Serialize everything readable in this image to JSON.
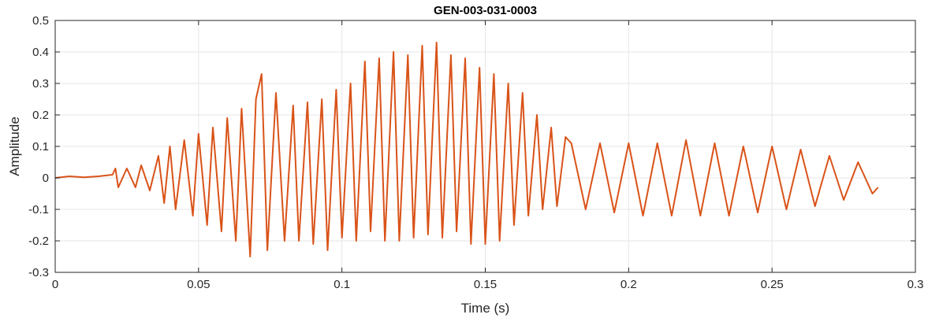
{
  "chart_data": {
    "type": "line",
    "title": "GEN-003-031-0003",
    "xlabel": "Time (s)",
    "ylabel": "Amplitude",
    "xlim": [
      0,
      0.3
    ],
    "ylim": [
      -0.3,
      0.5
    ],
    "xticks": [
      0,
      0.05,
      0.1,
      0.15,
      0.2,
      0.25,
      0.3
    ],
    "xtick_labels": [
      "0",
      "0.05",
      "0.1",
      "0.15",
      "0.2",
      "0.25",
      "0.3"
    ],
    "yticks": [
      -0.3,
      -0.2,
      -0.1,
      0,
      0.1,
      0.2,
      0.3,
      0.4,
      0.5
    ],
    "ytick_labels": [
      "-0.3",
      "-0.2",
      "-0.1",
      "0",
      "0.1",
      "0.2",
      "0.3",
      "0.4",
      "0.5"
    ],
    "grid": true,
    "line_color": "#D95319",
    "series": [
      {
        "x": [
          0,
          0.005,
          0.01,
          0.015,
          0.02,
          0.021,
          0.022,
          0.025,
          0.028,
          0.03,
          0.033,
          0.036,
          0.038,
          0.04,
          0.042,
          0.045,
          0.048,
          0.05,
          0.053,
          0.055,
          0.058,
          0.06,
          0.063,
          0.065,
          0.068,
          0.07,
          0.072,
          0.074,
          0.077,
          0.08,
          0.083,
          0.085,
          0.088,
          0.09,
          0.093,
          0.095,
          0.098,
          0.1,
          0.103,
          0.105,
          0.108,
          0.11,
          0.113,
          0.115,
          0.118,
          0.12,
          0.123,
          0.125,
          0.128,
          0.13,
          0.133,
          0.135,
          0.138,
          0.14,
          0.143,
          0.145,
          0.148,
          0.15,
          0.153,
          0.155,
          0.158,
          0.16,
          0.163,
          0.165,
          0.168,
          0.17,
          0.173,
          0.175,
          0.178,
          0.18,
          0.185,
          0.19,
          0.195,
          0.2,
          0.205,
          0.21,
          0.215,
          0.22,
          0.225,
          0.23,
          0.235,
          0.24,
          0.245,
          0.25,
          0.255,
          0.26,
          0.265,
          0.27,
          0.275,
          0.28,
          0.285,
          0.287
        ],
        "y": [
          0,
          0.005,
          0.002,
          0.005,
          0.01,
          0.03,
          -0.03,
          0.03,
          -0.03,
          0.04,
          -0.04,
          0.07,
          -0.08,
          0.1,
          -0.1,
          0.12,
          -0.12,
          0.14,
          -0.15,
          0.16,
          -0.17,
          0.19,
          -0.2,
          0.22,
          -0.25,
          0.25,
          0.33,
          -0.23,
          0.27,
          -0.2,
          0.23,
          -0.2,
          0.24,
          -0.21,
          0.25,
          -0.23,
          0.28,
          -0.19,
          0.3,
          -0.2,
          0.37,
          -0.17,
          0.38,
          -0.2,
          0.4,
          -0.2,
          0.39,
          -0.19,
          0.42,
          -0.18,
          0.43,
          -0.19,
          0.39,
          -0.17,
          0.38,
          -0.21,
          0.35,
          -0.21,
          0.33,
          -0.2,
          0.3,
          -0.15,
          0.27,
          -0.12,
          0.2,
          -0.1,
          0.16,
          -0.09,
          0.13,
          0.11,
          -0.1,
          0.11,
          -0.11,
          0.11,
          -0.12,
          0.11,
          -0.12,
          0.12,
          -0.12,
          0.11,
          -0.12,
          0.1,
          -0.11,
          0.1,
          -0.1,
          0.09,
          -0.09,
          0.07,
          -0.07,
          0.05,
          -0.05,
          -0.03
        ]
      }
    ]
  }
}
